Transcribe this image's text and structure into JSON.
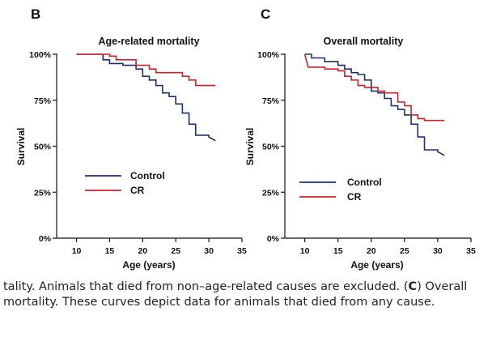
{
  "chart_data": [
    {
      "type": "line",
      "panel_letter": "B",
      "title": "Age-related mortality",
      "xlabel": "Age (years)",
      "ylabel": "Survival",
      "xlim": [
        7,
        35
      ],
      "ylim": [
        0,
        100
      ],
      "x_ticks": [
        10,
        15,
        20,
        25,
        30,
        35
      ],
      "y_ticks": [
        0,
        25,
        50,
        75,
        100
      ],
      "x_tick_labels": [
        "10",
        "15",
        "20",
        "25",
        "30",
        "35"
      ],
      "y_tick_labels": [
        "0%",
        "25%",
        "50%",
        "75%",
        "100%"
      ],
      "grid": false,
      "legend": "lower-left",
      "step": true,
      "series": [
        {
          "name": "Control",
          "color": "#1f2f6e",
          "points": [
            [
              10,
              100
            ],
            [
              14,
              100
            ],
            [
              14,
              97
            ],
            [
              15,
              97
            ],
            [
              15,
              95
            ],
            [
              17,
              95
            ],
            [
              17,
              94
            ],
            [
              19,
              94
            ],
            [
              19,
              92
            ],
            [
              20,
              92
            ],
            [
              20,
              88
            ],
            [
              21,
              88
            ],
            [
              21,
              86
            ],
            [
              22,
              86
            ],
            [
              22,
              83
            ],
            [
              23,
              83
            ],
            [
              23,
              79
            ],
            [
              24,
              79
            ],
            [
              24,
              77
            ],
            [
              25,
              77
            ],
            [
              25,
              73
            ],
            [
              26,
              73
            ],
            [
              26,
              68
            ],
            [
              27,
              68
            ],
            [
              27,
              62
            ],
            [
              28,
              62
            ],
            [
              28,
              56
            ],
            [
              30,
              56
            ],
            [
              30,
              55
            ],
            [
              31,
              53
            ]
          ]
        },
        {
          "name": "CR",
          "color": "#d0202a",
          "points": [
            [
              10,
              100
            ],
            [
              15,
              100
            ],
            [
              15,
              99
            ],
            [
              16,
              99
            ],
            [
              16,
              97
            ],
            [
              19,
              97
            ],
            [
              19,
              94
            ],
            [
              21,
              94
            ],
            [
              21,
              92
            ],
            [
              22,
              92
            ],
            [
              22,
              90
            ],
            [
              26,
              90
            ],
            [
              26,
              88
            ],
            [
              27,
              88
            ],
            [
              27,
              86
            ],
            [
              28,
              86
            ],
            [
              28,
              83
            ],
            [
              31,
              83
            ]
          ]
        }
      ]
    },
    {
      "type": "line",
      "panel_letter": "C",
      "title": "Overall mortality",
      "xlabel": "Age (years)",
      "ylabel": "Survival",
      "xlim": [
        7,
        35
      ],
      "ylim": [
        0,
        100
      ],
      "x_ticks": [
        10,
        15,
        20,
        25,
        30,
        35
      ],
      "y_ticks": [
        0,
        25,
        50,
        75,
        100
      ],
      "x_tick_labels": [
        "10",
        "15",
        "20",
        "25",
        "30",
        "35"
      ],
      "y_tick_labels": [
        "0%",
        "25%",
        "50%",
        "75%",
        "100%"
      ],
      "grid": false,
      "legend": "lower-left",
      "step": true,
      "series": [
        {
          "name": "Control",
          "color": "#1f2f6e",
          "points": [
            [
              10,
              100
            ],
            [
              11,
              100
            ],
            [
              11,
              98
            ],
            [
              13,
              98
            ],
            [
              13,
              96
            ],
            [
              15,
              96
            ],
            [
              15,
              94
            ],
            [
              16,
              94
            ],
            [
              16,
              92
            ],
            [
              17,
              92
            ],
            [
              17,
              90
            ],
            [
              18,
              90
            ],
            [
              18,
              89
            ],
            [
              19,
              89
            ],
            [
              19,
              86
            ],
            [
              20,
              86
            ],
            [
              20,
              80
            ],
            [
              21,
              80
            ],
            [
              21,
              79
            ],
            [
              22,
              79
            ],
            [
              22,
              76
            ],
            [
              23,
              76
            ],
            [
              23,
              72
            ],
            [
              24,
              72
            ],
            [
              24,
              70
            ],
            [
              25,
              70
            ],
            [
              25,
              67
            ],
            [
              26,
              67
            ],
            [
              26,
              62
            ],
            [
              27,
              62
            ],
            [
              27,
              55
            ],
            [
              28,
              55
            ],
            [
              28,
              48
            ],
            [
              30,
              48
            ],
            [
              30,
              47
            ],
            [
              31,
              45
            ]
          ]
        },
        {
          "name": "CR",
          "color": "#d0202a",
          "points": [
            [
              10,
              100
            ],
            [
              10.5,
              93
            ],
            [
              13,
              93
            ],
            [
              13,
              92
            ],
            [
              15,
              92
            ],
            [
              15,
              91
            ],
            [
              16,
              91
            ],
            [
              16,
              88
            ],
            [
              17,
              88
            ],
            [
              17,
              86
            ],
            [
              18,
              86
            ],
            [
              18,
              83
            ],
            [
              19,
              83
            ],
            [
              19,
              82
            ],
            [
              21,
              82
            ],
            [
              21,
              80
            ],
            [
              22,
              80
            ],
            [
              22,
              79
            ],
            [
              24,
              79
            ],
            [
              24,
              74
            ],
            [
              25,
              74
            ],
            [
              25,
              72
            ],
            [
              26,
              72
            ],
            [
              26,
              67
            ],
            [
              27,
              67
            ],
            [
              27,
              65
            ],
            [
              28,
              65
            ],
            [
              28,
              64
            ],
            [
              31,
              64
            ]
          ]
        }
      ]
    }
  ],
  "caption": {
    "lead": "tality. Animals that died from non–age-related causes are excluded. (",
    "bold_letter": "C",
    "rest": ") Overall mortality. These curves depict data for animals that died from any cause."
  }
}
